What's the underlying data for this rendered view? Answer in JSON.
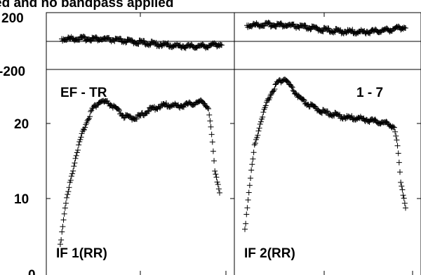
{
  "header": {
    "title_clipped": "ed and no bandpass applied"
  },
  "chart_data": [
    {
      "type": "scatter",
      "panel": "phase-left",
      "ylim": [
        -200,
        200
      ],
      "yticks": [
        200,
        -200
      ],
      "series": [
        {
          "marker": "+",
          "x": [
            0.0,
            0.1,
            0.2,
            0.3,
            0.4,
            0.5,
            0.6,
            0.7,
            0.8,
            0.9,
            1.0
          ],
          "y": [
            15,
            18,
            17,
            10,
            0,
            -10,
            -22,
            -32,
            -38,
            -35,
            -20
          ]
        }
      ]
    },
    {
      "type": "scatter",
      "panel": "phase-right",
      "ylim": [
        -200,
        200
      ],
      "series": [
        {
          "marker": "+",
          "x": [
            0.0,
            0.1,
            0.2,
            0.3,
            0.4,
            0.5,
            0.6,
            0.7,
            0.8,
            0.9,
            1.0
          ],
          "y": [
            110,
            116,
            115,
            105,
            92,
            78,
            68,
            64,
            68,
            80,
            100
          ]
        }
      ]
    },
    {
      "type": "scatter",
      "panel": "amp-left",
      "annotation_top": "EF - TR",
      "annotation_bottom": "IF 1(RR)",
      "ylim": [
        0,
        28
      ],
      "yticks": [
        0,
        10,
        20
      ],
      "series": [
        {
          "marker": "+",
          "x": [
            0.0,
            0.03,
            0.06,
            0.1,
            0.15,
            0.2,
            0.25,
            0.3,
            0.35,
            0.4,
            0.45,
            0.5,
            0.55,
            0.6,
            0.65,
            0.7,
            0.75,
            0.8,
            0.85,
            0.9,
            0.93,
            0.95,
            0.97,
            1.0
          ],
          "y": [
            4.0,
            9.0,
            12.0,
            16.0,
            19.5,
            22.0,
            23.0,
            22.8,
            22.0,
            21.0,
            20.8,
            21.0,
            21.8,
            22.2,
            22.5,
            22.5,
            22.4,
            22.6,
            22.8,
            23.0,
            22.0,
            18.5,
            14.0,
            11.0
          ]
        }
      ]
    },
    {
      "type": "scatter",
      "panel": "amp-right",
      "annotation_top": "1 - 7",
      "annotation_bottom": "IF 2(RR)",
      "ylim": [
        0,
        28
      ],
      "series": [
        {
          "marker": "+",
          "x": [
            0.0,
            0.03,
            0.06,
            0.1,
            0.15,
            0.2,
            0.25,
            0.3,
            0.35,
            0.4,
            0.45,
            0.5,
            0.55,
            0.6,
            0.65,
            0.7,
            0.75,
            0.8,
            0.85,
            0.9,
            0.93,
            0.95,
            0.97,
            1.0
          ],
          "y": [
            6.0,
            12.0,
            17.0,
            20.5,
            23.5,
            25.5,
            26.0,
            24.5,
            23.2,
            22.5,
            22.0,
            21.5,
            21.3,
            21.0,
            20.8,
            20.8,
            20.6,
            20.4,
            20.2,
            20.0,
            19.5,
            17.0,
            12.5,
            9.0
          ]
        }
      ]
    }
  ]
}
